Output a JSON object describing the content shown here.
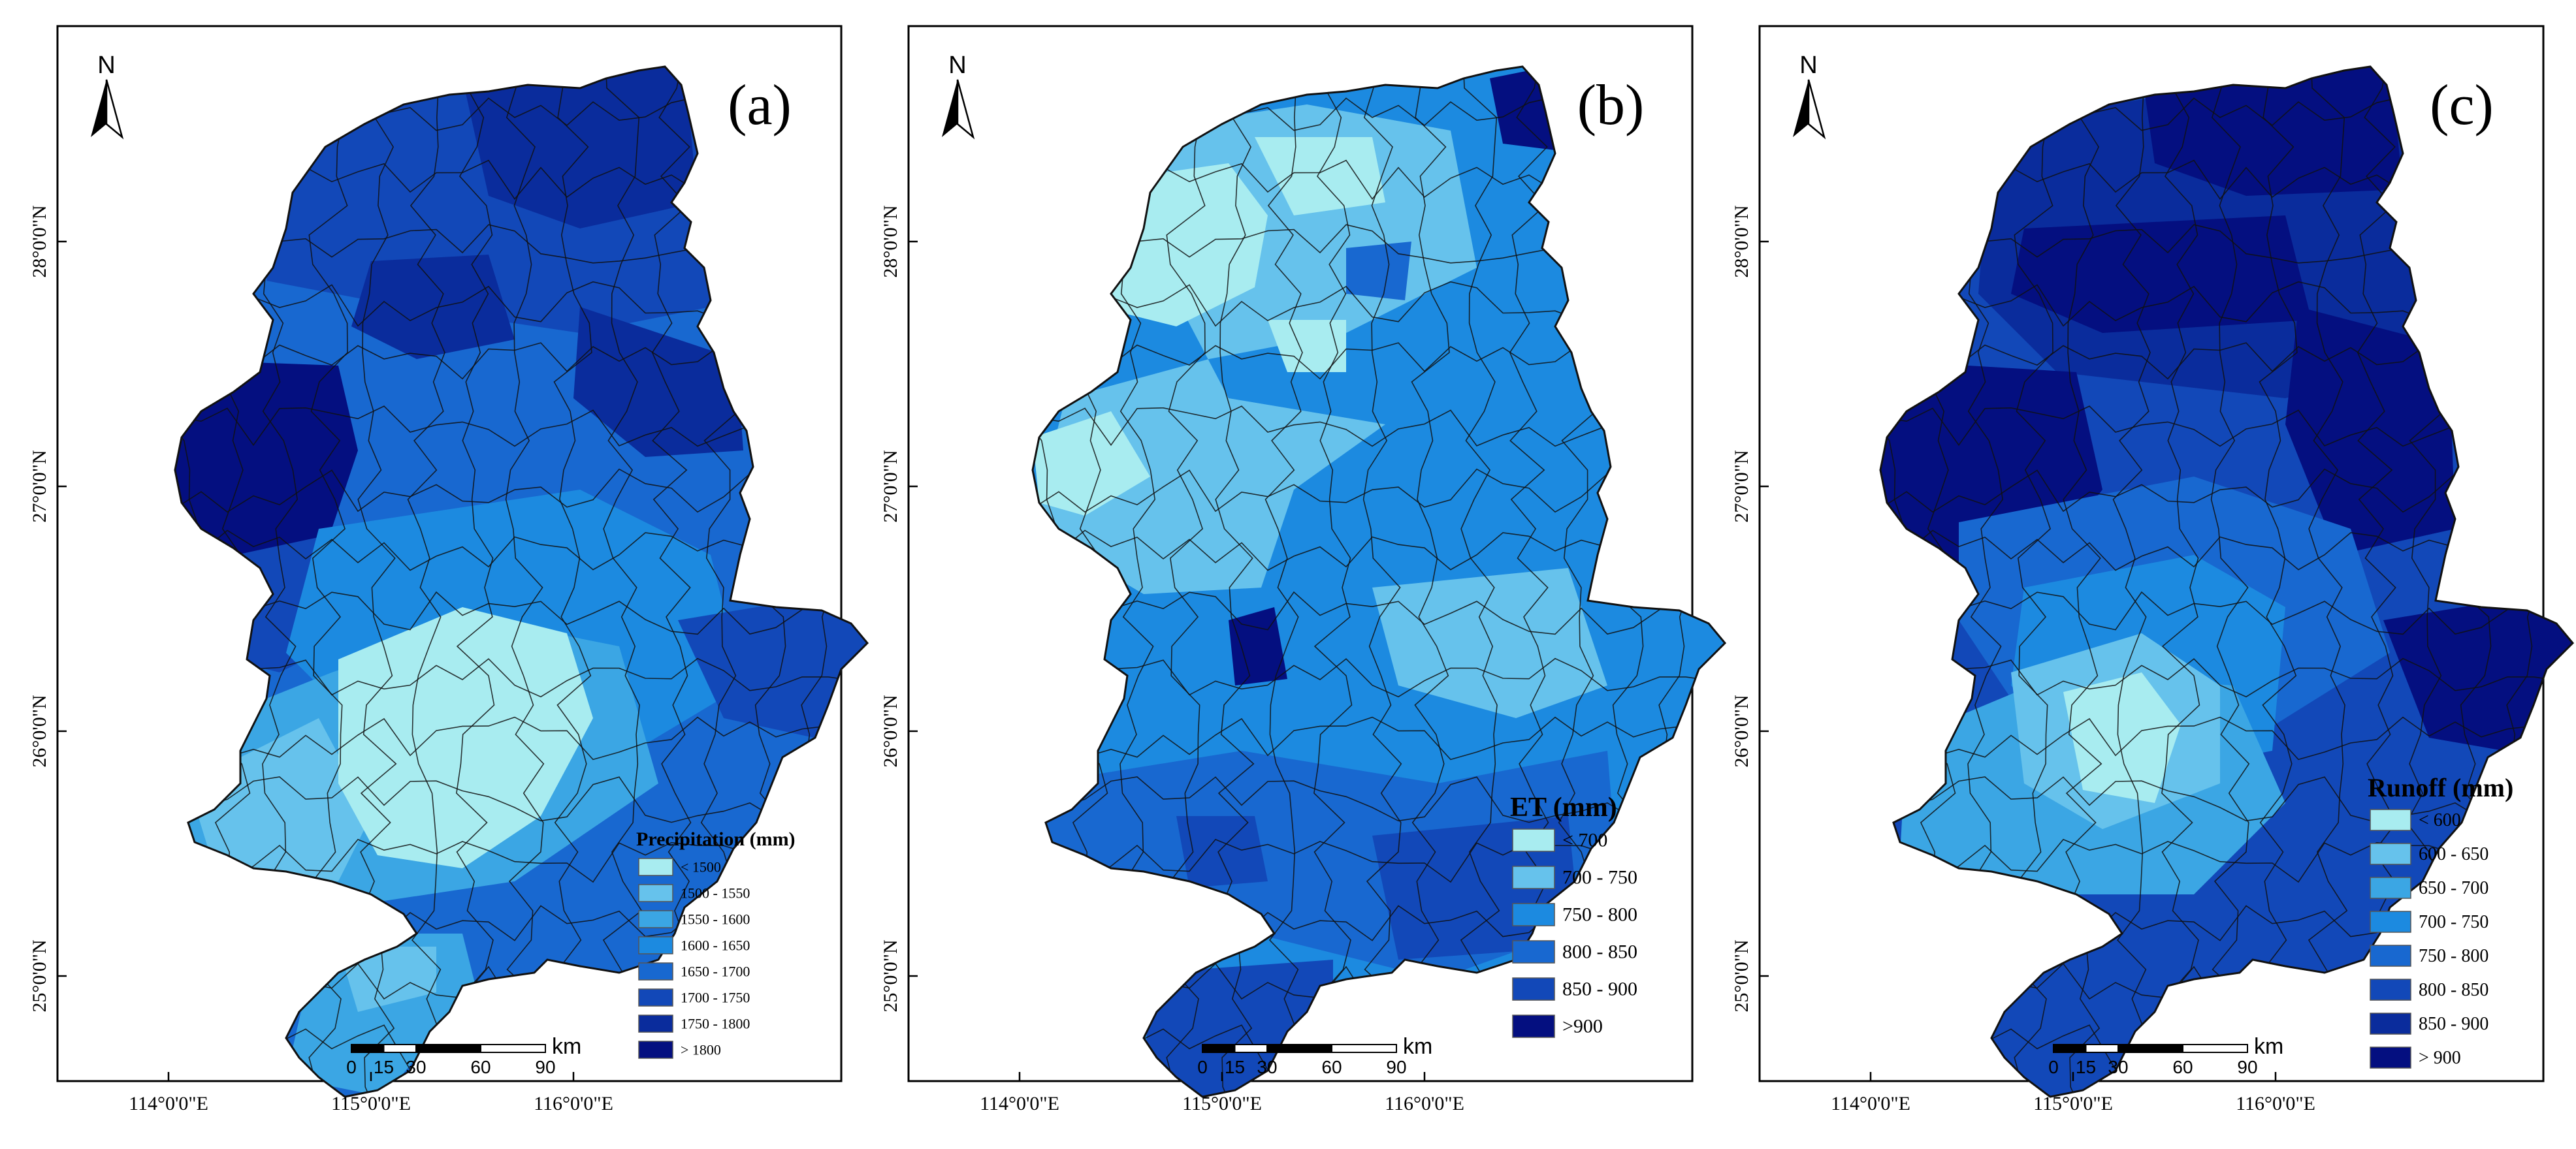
{
  "colors": {
    "c1": "#a8ecf0",
    "c2": "#66c2ec",
    "c3": "#3ba6e4",
    "c4": "#1c8ae0",
    "c5": "#1868d0",
    "c6": "#1248b8",
    "c7": "#0a2c9c",
    "c8": "#040f80"
  },
  "panels": [
    {
      "letter": "(a)",
      "north_label": "N",
      "legend_title": "Precipitation (mm)",
      "legend_items": [
        "< 1500",
        "1500 - 1550",
        "1550 - 1600",
        "1600 - 1650",
        "1650 - 1700",
        "1700 - 1750",
        "1750 - 1800",
        "> 1800"
      ],
      "legend_colors": [
        "c1",
        "c2",
        "c3",
        "c4",
        "c5",
        "c6",
        "c7",
        "c8"
      ],
      "scale_unit": "km",
      "scale_ticks": [
        "0",
        "15",
        "30",
        "60",
        "90"
      ],
      "lat_labels": [
        "28°0'0\"N",
        "27°0'0\"N",
        "26°0'0\"N",
        "25°0'0\"N"
      ],
      "lon_labels": [
        "114°0'0\"E",
        "115°0'0\"E",
        "116°0'0\"E"
      ]
    },
    {
      "letter": "(b)",
      "north_label": "N",
      "legend_title": "ET (mm)",
      "legend_items": [
        "< 700",
        "700 - 750",
        "750 - 800",
        "800 - 850",
        "850 - 900",
        ">900"
      ],
      "legend_colors": [
        "c1",
        "c2",
        "c4",
        "c5",
        "c6",
        "c8"
      ],
      "scale_unit": "km",
      "scale_ticks": [
        "0",
        "15",
        "30",
        "60",
        "90"
      ],
      "lat_labels": [
        "28°0'0\"N",
        "27°0'0\"N",
        "26°0'0\"N",
        "25°0'0\"N"
      ],
      "lon_labels": [
        "114°0'0\"E",
        "115°0'0\"E",
        "116°0'0\"E"
      ]
    },
    {
      "letter": "(c)",
      "north_label": "N",
      "legend_title": "Runoff (mm)",
      "legend_items": [
        "< 600",
        "600 - 650",
        "650 - 700",
        "700 - 750",
        "750 - 800",
        "800 - 850",
        "850 - 900",
        "> 900"
      ],
      "legend_colors": [
        "c1",
        "c2",
        "c3",
        "c4",
        "c5",
        "c6",
        "c7",
        "c8"
      ],
      "scale_unit": "km",
      "scale_ticks": [
        "0",
        "15",
        "30",
        "60",
        "90"
      ],
      "lat_labels": [
        "28°0'0\"N",
        "27°0'0\"N",
        "26°0'0\"N",
        "25°0'0\"N"
      ],
      "lon_labels": [
        "114°0'0\"E",
        "115°0'0\"E",
        "116°0'0\"E"
      ]
    }
  ]
}
